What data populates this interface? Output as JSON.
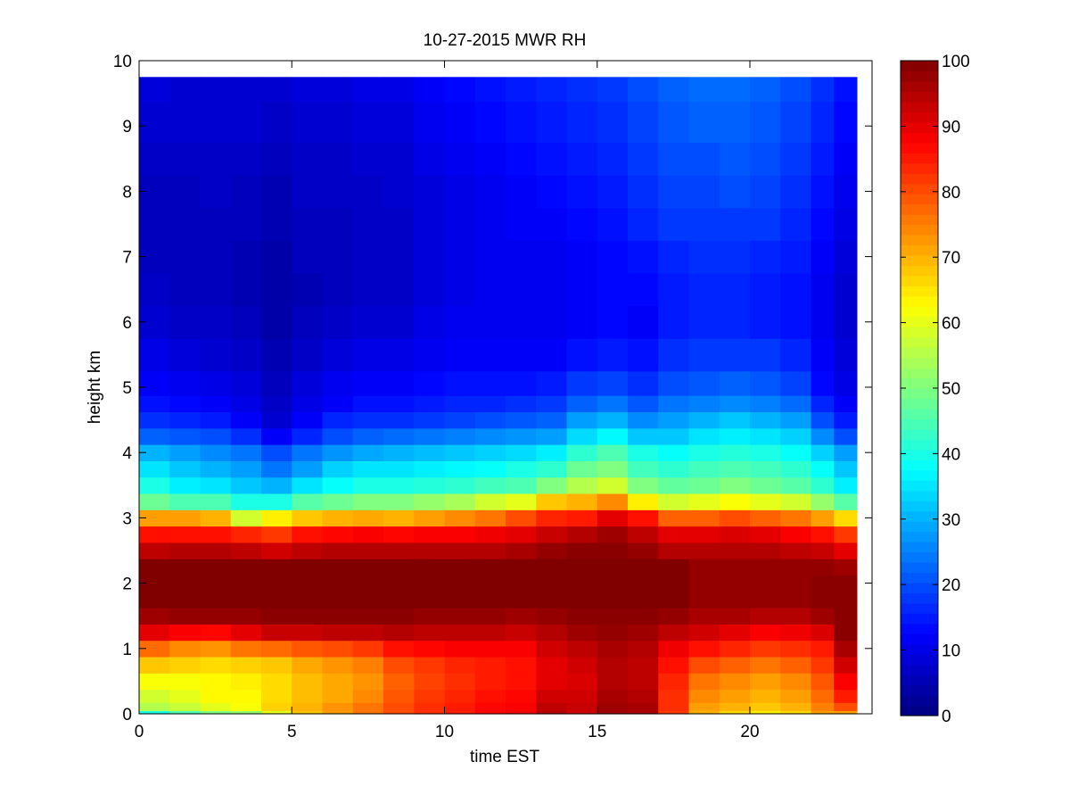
{
  "chart_data": {
    "type": "heatmap",
    "title": "10-27-2015 MWR RH",
    "xlabel": "time EST",
    "ylabel": "height km",
    "xlim": [
      0,
      24
    ],
    "ylim": [
      0,
      10
    ],
    "xticks": [
      0,
      5,
      10,
      15,
      20
    ],
    "yticks": [
      0,
      1,
      2,
      3,
      4,
      5,
      6,
      7,
      8,
      9,
      10
    ],
    "x_centers": [
      0.5,
      1.5,
      2.5,
      3.5,
      4.5,
      5.5,
      6.5,
      7.5,
      8.5,
      9.5,
      10.5,
      11.5,
      12.5,
      13.5,
      14.5,
      15.5,
      16.5,
      17.5,
      18.5,
      19.5,
      20.5,
      21.5,
      22.5,
      23
    ],
    "x_max": 23.5,
    "y_top": 9.75,
    "colormap": "jet",
    "colorbar": {
      "min": 0,
      "max": 100,
      "ticks": [
        0,
        10,
        20,
        30,
        40,
        50,
        60,
        70,
        80,
        90,
        100
      ]
    },
    "height_km": [
      0.0,
      0.1,
      0.25,
      0.5,
      0.75,
      1.0,
      1.25,
      1.5,
      1.75,
      2.0,
      2.25,
      2.5,
      2.75,
      3.0,
      3.25,
      3.5,
      3.75,
      4.0,
      4.25,
      4.5,
      4.75,
      5.0,
      5.5,
      6.0,
      6.5,
      7.0,
      7.5,
      8.0,
      8.5,
      9.0,
      9.75
    ],
    "rh_by_time": [
      [
        40,
        55,
        58,
        62,
        68,
        77,
        90,
        97,
        100,
        100,
        100,
        94,
        86,
        72,
        48,
        40,
        35,
        30,
        22,
        17,
        14,
        12,
        10,
        8,
        7,
        6,
        6,
        6,
        7,
        8,
        9
      ],
      [
        45,
        57,
        60,
        62,
        67,
        74,
        88,
        98,
        100,
        100,
        100,
        95,
        86,
        72,
        45,
        36,
        32,
        28,
        21,
        16,
        13,
        11,
        9,
        7,
        6,
        6,
        6,
        6,
        7,
        8,
        8
      ],
      [
        50,
        60,
        63,
        63,
        66,
        73,
        87,
        98,
        100,
        100,
        100,
        95,
        86,
        70,
        45,
        35,
        30,
        26,
        20,
        15,
        12,
        10,
        8,
        7,
        6,
        6,
        6,
        7,
        7,
        8,
        8
      ],
      [
        52,
        62,
        63,
        64,
        67,
        76,
        90,
        98,
        100,
        100,
        100,
        94,
        84,
        58,
        40,
        32,
        28,
        24,
        17,
        12,
        10,
        9,
        7,
        6,
        5,
        5,
        6,
        6,
        7,
        8,
        8
      ],
      [
        60,
        67,
        66,
        66,
        68,
        77,
        93,
        99,
        100,
        100,
        100,
        92,
        82,
        64,
        40,
        30,
        24,
        20,
        12,
        8,
        7,
        6,
        5,
        4,
        4,
        4,
        5,
        5,
        6,
        7,
        8
      ],
      [
        68,
        70,
        69,
        69,
        71,
        79,
        93,
        99,
        100,
        100,
        100,
        94,
        86,
        68,
        46,
        35,
        28,
        24,
        16,
        12,
        10,
        9,
        7,
        6,
        5,
        6,
        6,
        7,
        7,
        8,
        9
      ],
      [
        72,
        73,
        71,
        71,
        73,
        80,
        94,
        99,
        100,
        100,
        100,
        95,
        87,
        70,
        48,
        38,
        33,
        27,
        20,
        16,
        12,
        11,
        9,
        7,
        6,
        6,
        6,
        7,
        7,
        8,
        9
      ],
      [
        76,
        76,
        74,
        73,
        75,
        82,
        94,
        99,
        100,
        100,
        100,
        95,
        88,
        71,
        50,
        40,
        35,
        29,
        22,
        17,
        14,
        12,
        10,
        8,
        7,
        7,
        7,
        7,
        8,
        9,
        10
      ],
      [
        80,
        80,
        79,
        78,
        80,
        86,
        95,
        99,
        100,
        100,
        100,
        95,
        87,
        70,
        50,
        40,
        35,
        30,
        23,
        17,
        14,
        12,
        10,
        8,
        7,
        7,
        7,
        8,
        8,
        9,
        10
      ],
      [
        83,
        83,
        82,
        81,
        82,
        87,
        94,
        98,
        100,
        100,
        100,
        95,
        88,
        72,
        52,
        41,
        36,
        31,
        24,
        18,
        15,
        13,
        11,
        10,
        9,
        9,
        9,
        9,
        10,
        11,
        12
      ],
      [
        85,
        85,
        84,
        83,
        84,
        88,
        94,
        98,
        100,
        100,
        100,
        95,
        88,
        74,
        54,
        42,
        37,
        32,
        25,
        19,
        16,
        14,
        12,
        11,
        10,
        10,
        10,
        10,
        11,
        12,
        13
      ],
      [
        87,
        87,
        86,
        85,
        85,
        88,
        94,
        98,
        100,
        100,
        100,
        95,
        89,
        76,
        58,
        44,
        38,
        33,
        26,
        20,
        16,
        14,
        12,
        11,
        11,
        11,
        11,
        11,
        12,
        13,
        14
      ],
      [
        89,
        88,
        87,
        86,
        86,
        88,
        93,
        97,
        100,
        100,
        100,
        96,
        90,
        80,
        60,
        45,
        40,
        34,
        27,
        21,
        17,
        14,
        12,
        11,
        11,
        11,
        12,
        12,
        13,
        14,
        15
      ],
      [
        95,
        94,
        92,
        90,
        90,
        92,
        95,
        98,
        100,
        100,
        100,
        98,
        93,
        84,
        68,
        50,
        42,
        36,
        28,
        22,
        18,
        15,
        12,
        11,
        11,
        11,
        12,
        13,
        14,
        15,
        16
      ],
      [
        92,
        93,
        92,
        91,
        92,
        94,
        97,
        99,
        100,
        100,
        100,
        99,
        95,
        85,
        70,
        55,
        48,
        42,
        34,
        28,
        22,
        18,
        14,
        12,
        12,
        12,
        13,
        14,
        15,
        16,
        17
      ],
      [
        97,
        97,
        96,
        95,
        95,
        96,
        98,
        99,
        100,
        100,
        100,
        99,
        97,
        90,
        74,
        58,
        50,
        45,
        37,
        30,
        24,
        19,
        15,
        13,
        13,
        13,
        14,
        15,
        16,
        17,
        18
      ],
      [
        96,
        96,
        95,
        94,
        94,
        95,
        97,
        99,
        100,
        100,
        100,
        98,
        94,
        86,
        64,
        50,
        44,
        40,
        32,
        26,
        21,
        17,
        14,
        12,
        13,
        14,
        16,
        17,
        18,
        19,
        20
      ],
      [
        82,
        83,
        83,
        84,
        86,
        89,
        94,
        98,
        100,
        100,
        100,
        95,
        90,
        78,
        58,
        47,
        42,
        38,
        32,
        28,
        24,
        20,
        17,
        15,
        15,
        16,
        18,
        19,
        20,
        21,
        22
      ],
      [
        70,
        72,
        74,
        76,
        80,
        86,
        92,
        96,
        98,
        98,
        98,
        95,
        90,
        78,
        60,
        48,
        44,
        40,
        35,
        30,
        25,
        21,
        18,
        16,
        16,
        17,
        18,
        19,
        20,
        22,
        23
      ],
      [
        66,
        70,
        72,
        74,
        78,
        84,
        90,
        96,
        98,
        98,
        98,
        95,
        91,
        80,
        62,
        50,
        45,
        41,
        36,
        32,
        26,
        22,
        18,
        16,
        16,
        17,
        18,
        20,
        21,
        22,
        23
      ],
      [
        64,
        68,
        70,
        72,
        76,
        82,
        88,
        95,
        98,
        98,
        98,
        95,
        90,
        78,
        60,
        48,
        44,
        40,
        35,
        30,
        25,
        21,
        18,
        15,
        15,
        16,
        18,
        19,
        20,
        21,
        22
      ],
      [
        66,
        70,
        72,
        74,
        78,
        83,
        89,
        95,
        98,
        98,
        98,
        94,
        88,
        76,
        58,
        46,
        42,
        38,
        33,
        28,
        23,
        19,
        16,
        14,
        14,
        15,
        16,
        17,
        18,
        19,
        20
      ],
      [
        72,
        75,
        77,
        79,
        82,
        85,
        91,
        97,
        99,
        99,
        98,
        93,
        86,
        72,
        52,
        42,
        38,
        33,
        26,
        20,
        16,
        13,
        12,
        11,
        11,
        12,
        13,
        14,
        15,
        16,
        17
      ],
      [
        72,
        80,
        85,
        88,
        92,
        96,
        99,
        99,
        99,
        99,
        97,
        90,
        82,
        66,
        46,
        36,
        32,
        28,
        20,
        15,
        12,
        10,
        9,
        8,
        8,
        9,
        10,
        11,
        12,
        13,
        14
      ]
    ]
  }
}
